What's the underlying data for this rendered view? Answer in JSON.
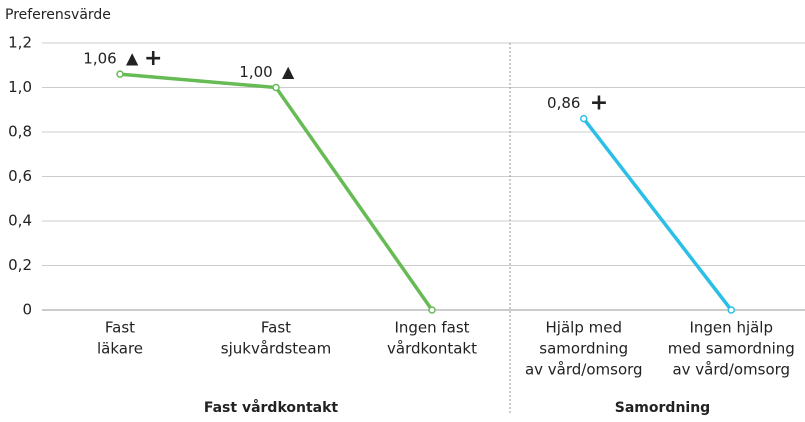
{
  "chart_data": {
    "type": "line",
    "y_label": "Preferensvärde",
    "ylim": [
      0,
      1.2
    ],
    "yticks": [
      0,
      {
        "value": 0.2,
        "label": "0,2"
      },
      {
        "value": 0.4,
        "label": "0,4"
      },
      {
        "value": 0.6,
        "label": "0,6"
      },
      {
        "value": 0.8,
        "label": "0,8"
      },
      {
        "value": 1.0,
        "label": "1,0"
      },
      {
        "value": 1.2,
        "label": "1,2"
      }
    ],
    "grid": true,
    "groups": [
      {
        "name": "Fast vårdkontakt",
        "color": "#66bb55",
        "categories": [
          [
            "Fast",
            "läkare"
          ],
          [
            "Fast",
            "sjukvårdsteam"
          ],
          [
            "Ingen fast",
            "vårdkontakt"
          ]
        ],
        "values": [
          1.06,
          1.0,
          0
        ],
        "value_labels": [
          "1,06",
          "1,00",
          null
        ],
        "symbols": [
          [
            "▲",
            "+"
          ],
          [
            "▲"
          ],
          null
        ]
      },
      {
        "name": "Samordning",
        "color": "#2bbfe6",
        "categories": [
          [
            "Hjälp med",
            "samordning",
            "av vård/omsorg"
          ],
          [
            "Ingen hjälp",
            "med samordning",
            "av vård/omsorg"
          ]
        ],
        "values": [
          0.86,
          0
        ],
        "value_labels": [
          "0,86",
          null
        ],
        "symbols": [
          [
            "+"
          ],
          null
        ]
      }
    ]
  }
}
